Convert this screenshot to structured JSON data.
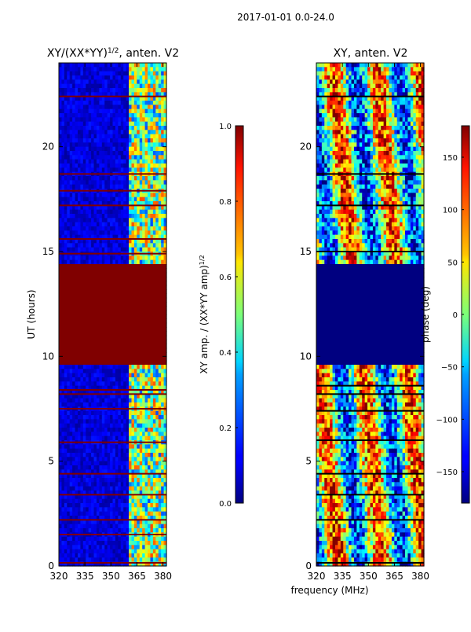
{
  "suptitle": "2017-01-01 0.0-24.0",
  "chart_data": [
    {
      "type": "heatmap",
      "title": "XY/(XX*YY)",
      "title_exponent": "1/2",
      "title_suffix": ", anten. V2",
      "xlabel": "",
      "ylabel": "UT (hours)",
      "x_ticks": [
        320,
        335,
        350,
        365,
        380
      ],
      "y_ticks": [
        0,
        5,
        10,
        15,
        20
      ],
      "xlim": [
        320,
        382
      ],
      "ylim": [
        0,
        24
      ],
      "saturated_band_hours": [
        9.5,
        14.5
      ],
      "bright_frequency_band_mhz": [
        360,
        382
      ],
      "colorbar": {
        "label": "XY amp. / (XX*YY amp)",
        "label_exponent": "1/2",
        "ticks": [
          "0.0",
          "0.2",
          "0.4",
          "0.6",
          "0.8",
          "1.0"
        ],
        "range": [
          0,
          1
        ],
        "colormap": "jet"
      }
    },
    {
      "type": "heatmap",
      "title": "XY, anten. V2",
      "xlabel": "frequency (MHz)",
      "ylabel": "",
      "x_ticks": [
        320,
        335,
        350,
        365,
        380
      ],
      "y_ticks": [
        0,
        5,
        10,
        15,
        20
      ],
      "xlim": [
        320,
        382
      ],
      "ylim": [
        0,
        24
      ],
      "blank_band_hours": [
        9.5,
        14.5
      ],
      "colorbar": {
        "label": "phase (deg)",
        "ticks": [
          "−150",
          "−100",
          "−50",
          "0",
          "50",
          "100",
          "150"
        ],
        "tick_values": [
          -150,
          -100,
          -50,
          0,
          50,
          100,
          150
        ],
        "range": [
          -180,
          180
        ],
        "colormap": "jet"
      }
    }
  ],
  "colors": {
    "jet_dark_red": "#800000",
    "jet_dark_blue": "#00007f",
    "jet_blue": "#0000ff",
    "jet_cyan": "#00ffff",
    "jet_green": "#7fff7f",
    "jet_yellow": "#ffff00",
    "jet_red": "#ff0000"
  }
}
